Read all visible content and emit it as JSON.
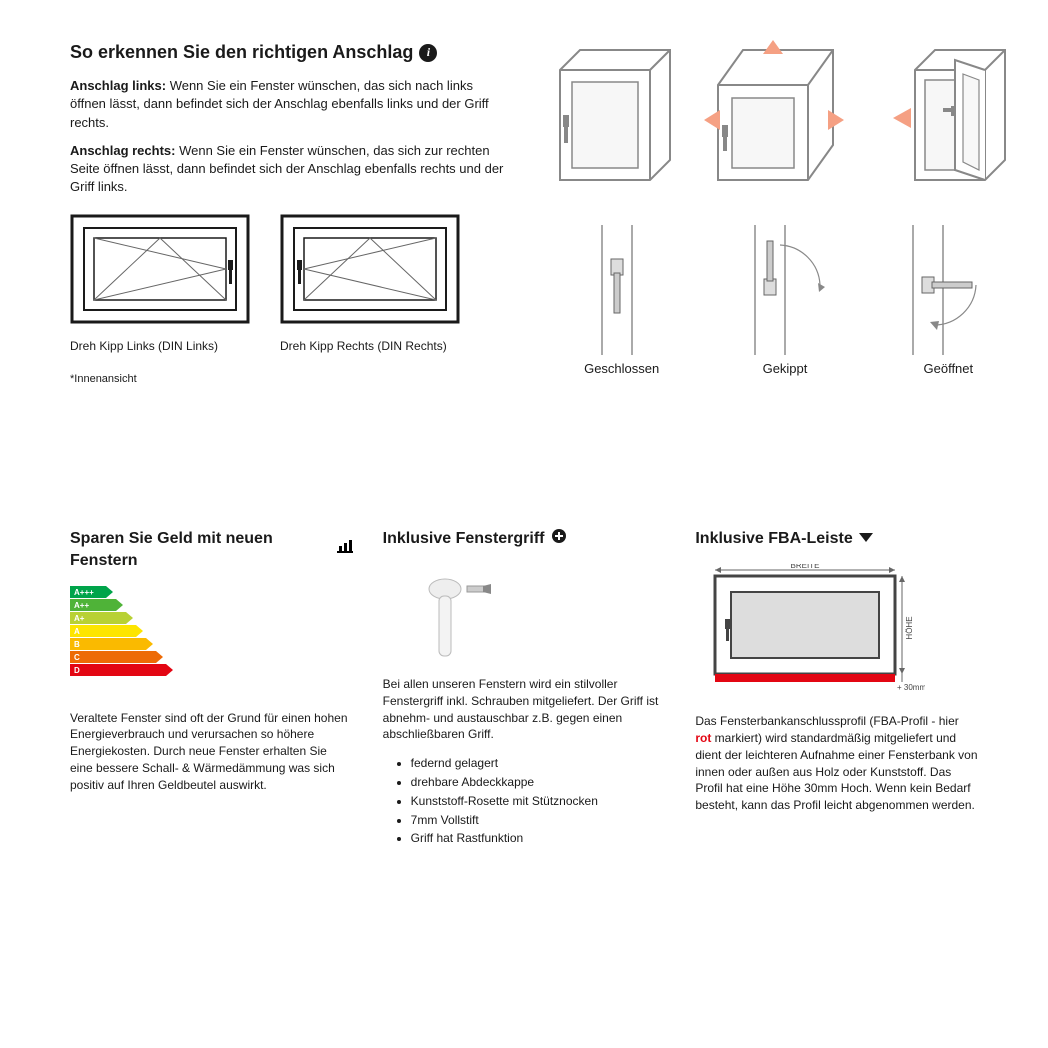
{
  "top": {
    "title": "So erkennen Sie den richtigen Anschlag",
    "paragraphs": [
      {
        "bold": "Anschlag links:",
        "rest": " Wenn Sie ein Fenster wünschen, das sich nach links öffnen lässt, dann befindet sich der Anschlag ebenfalls links und der Griff rechts."
      },
      {
        "bold": "Anschlag rechts:",
        "rest": " Wenn Sie ein Fenster wünschen, das sich zur rechten Seite öffnen lässt, dann befindet sich der Anschlag ebenfalls rechts und der Griff links."
      }
    ],
    "windows": [
      {
        "label": "Dreh Kipp Links (DIN Links)"
      },
      {
        "label": "Dreh Kipp Rechts (DIN Rechts)"
      }
    ],
    "footnote": "*Innenansicht",
    "states": [
      {
        "label": "Geschlossen"
      },
      {
        "label": "Gekippt"
      },
      {
        "label": "Geöffnet"
      }
    ]
  },
  "bottom": {
    "cols": [
      {
        "title": "Sparen Sie Geld mit neuen Fenstern",
        "text": "Veraltete Fenster sind oft der Grund für einen hohen Energieverbrauch und verursachen so höhere Energiekosten. Durch neue Fenster erhalten Sie eine bessere Schall- & Wärmedämmung was sich positiv auf Ihren Geldbeutel auswirkt."
      },
      {
        "title": "Inklusive Fenstergriff",
        "text": "Bei allen unseren Fenstern wird ein stilvoller Fenstergriff inkl. Schrauben mitgeliefert. Der Griff ist abnehm- und austauschbar z.B. gegen einen abschließbaren Griff.",
        "bullets": [
          "federnd gelagert",
          "drehbare Abdeckkappe",
          "Kunststoff-Rosette mit Stütznocken",
          "7mm Vollstift",
          "Griff hat Rastfunktion"
        ]
      },
      {
        "title": "Inklusive FBA-Leiste",
        "text1": "Das Fensterbankanschlussprofil (FBA-Profil - hier ",
        "rot": "rot",
        "text2": " markiert) wird standardmäßig mitgeliefert und dient der leichteren Aufnahme einer Fensterbank von innen oder außen aus Holz oder Kunststoff. Das Profil hat eine Höhe 30mm Hoch. Wenn kein Bedarf besteht, kann das Profil leicht abgenommen werden.",
        "breite": "BREITE",
        "hohe": "HÖHE",
        "extra": "+ 30mm"
      }
    ],
    "energy": {
      "levels": [
        "A+++",
        "A++",
        "A+",
        "A",
        "B",
        "C",
        "D"
      ],
      "colors": [
        "#00a44a",
        "#4fb338",
        "#b8d134",
        "#fde500",
        "#faba00",
        "#ed6b06",
        "#e30613"
      ]
    }
  }
}
